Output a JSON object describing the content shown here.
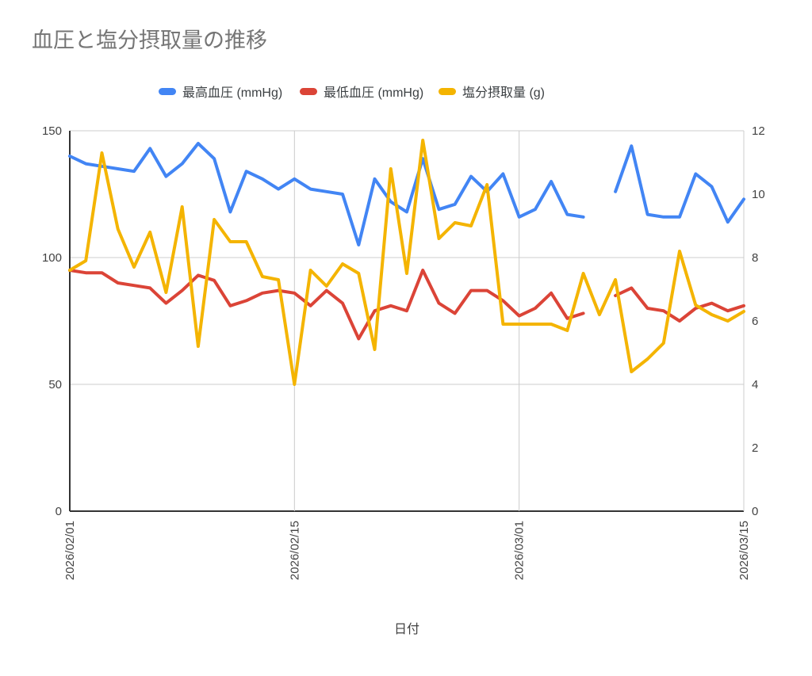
{
  "title": "血圧と塩分摂取量の推移",
  "colors": {
    "title_text": "#757575",
    "axis_line": "#333333",
    "grid_line": "#cccccc",
    "tick_label": "#424242",
    "legend_text": "#3c4043"
  },
  "chart_data": {
    "type": "line",
    "title": "血圧と塩分摂取量の推移",
    "xlabel": "日付",
    "legend_position": "top",
    "grid": "horizontal-major",
    "left_axis": {
      "min": 0,
      "max": 150,
      "ticks": [
        0,
        50,
        100,
        150
      ]
    },
    "right_axis": {
      "min": 0,
      "max": 12,
      "ticks": [
        0,
        2,
        4,
        6,
        8,
        10,
        12
      ]
    },
    "x_tick_positions": [
      0,
      14,
      28,
      42
    ],
    "x_tick_labels": [
      "2026/02/01",
      "2026/02/15",
      "2026/03/01",
      "2026/03/15"
    ],
    "x_labels": [
      "2026/02/01",
      "2026/02/02",
      "2026/02/03",
      "2026/02/04",
      "2026/02/05",
      "2026/02/06",
      "2026/02/07",
      "2026/02/08",
      "2026/02/09",
      "2026/02/10",
      "2026/02/11",
      "2026/02/12",
      "2026/02/13",
      "2026/02/14",
      "2026/02/15",
      "2026/02/16",
      "2026/02/17",
      "2026/02/18",
      "2026/02/19",
      "2026/02/20",
      "2026/02/21",
      "2026/02/22",
      "2026/02/23",
      "2026/02/24",
      "2026/02/25",
      "2026/02/26",
      "2026/02/27",
      "2026/02/28",
      "2026/03/01",
      "2026/03/02",
      "2026/03/03",
      "2026/03/04",
      "2026/03/05",
      "2026/03/06",
      "2026/03/07",
      "2026/03/08",
      "2026/03/09",
      "2026/03/10",
      "2026/03/11",
      "2026/03/12",
      "2026/03/13",
      "2026/03/14",
      "2026/03/15"
    ],
    "series": [
      {
        "name": "最高血圧 (mmHg)",
        "axis": "left",
        "color": "#4285F4",
        "values": [
          140,
          137,
          136,
          135,
          134,
          143,
          132,
          137,
          145,
          139,
          118,
          134,
          131,
          127,
          131,
          127,
          126,
          125,
          105,
          131,
          122,
          118,
          139,
          119,
          121,
          132,
          126,
          133,
          116,
          119,
          130,
          117,
          116,
          null,
          126,
          144,
          117,
          116,
          116,
          133,
          128,
          114,
          123
        ]
      },
      {
        "name": "最低血圧 (mmHg)",
        "axis": "left",
        "color": "#DB4437",
        "values": [
          95,
          94,
          94,
          90,
          89,
          88,
          82,
          87,
          93,
          91,
          81,
          83,
          86,
          87,
          86,
          81,
          87,
          82,
          68,
          79,
          81,
          79,
          95,
          82,
          78,
          87,
          87,
          83,
          77,
          80,
          86,
          76,
          78,
          null,
          85,
          88,
          80,
          79,
          75,
          80,
          82,
          79,
          81
        ]
      },
      {
        "name": "塩分摂取量 (g)",
        "axis": "right",
        "color": "#F4B400",
        "values": [
          7.6,
          7.9,
          11.3,
          8.9,
          7.7,
          8.8,
          6.9,
          9.6,
          5.2,
          9.2,
          8.5,
          8.5,
          7.4,
          7.3,
          4.0,
          7.6,
          7.1,
          7.8,
          7.5,
          5.1,
          10.8,
          7.5,
          11.7,
          8.6,
          9.1,
          9.0,
          10.3,
          5.9,
          5.9,
          5.9,
          5.9,
          5.7,
          7.5,
          6.2,
          7.3,
          4.4,
          4.8,
          5.3,
          8.2,
          6.5,
          6.2,
          6.0,
          6.3
        ]
      }
    ]
  }
}
